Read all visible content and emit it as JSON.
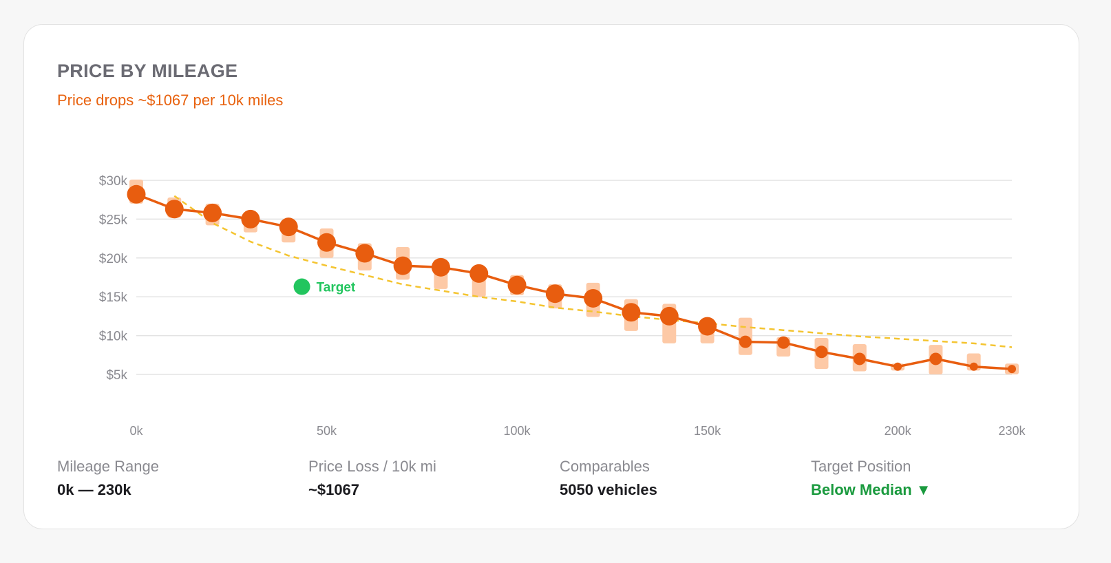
{
  "header": {
    "title": "PRICE BY MILEAGE",
    "subtitle": "Price drops ~$1067 per 10k miles"
  },
  "colors": {
    "accent": "#e85d0f",
    "band": "#fdc9a6",
    "trend": "#f4c430",
    "target": "#22c55e",
    "good_text": "#1a9a3e"
  },
  "chart_data": {
    "type": "line",
    "title": "PRICE BY MILEAGE",
    "xlabel": "",
    "ylabel": "",
    "x_ticks": [
      "0k",
      "50k",
      "100k",
      "150k",
      "200k",
      "230k"
    ],
    "y_ticks": [
      "$30k",
      "$25k",
      "$20k",
      "$15k",
      "$10k",
      "$5k"
    ],
    "xlim": [
      0,
      230
    ],
    "ylim": [
      0,
      30
    ],
    "grid": true,
    "x_unit": "thousand miles",
    "y_unit": "thousand USD",
    "series": [
      {
        "kind": "median",
        "points": [
          {
            "x": 0,
            "y": 28.2,
            "lo": 27.0,
            "hi": 30.1,
            "n": 1
          },
          {
            "x": 10,
            "y": 26.3,
            "lo": 25.2,
            "hi": 27.8,
            "n": 1
          },
          {
            "x": 20,
            "y": 25.8,
            "lo": 24.2,
            "hi": 27.0,
            "n": 1
          },
          {
            "x": 30,
            "y": 25.0,
            "lo": 23.3,
            "hi": 25.8,
            "n": 1
          },
          {
            "x": 40,
            "y": 24.0,
            "lo": 22.0,
            "hi": 24.8,
            "n": 1
          },
          {
            "x": 50,
            "y": 22.0,
            "lo": 20.0,
            "hi": 23.8,
            "n": 1
          },
          {
            "x": 60,
            "y": 20.6,
            "lo": 18.4,
            "hi": 21.9,
            "n": 1
          },
          {
            "x": 70,
            "y": 19.0,
            "lo": 17.2,
            "hi": 21.4,
            "n": 1
          },
          {
            "x": 80,
            "y": 18.8,
            "lo": 16.0,
            "hi": 19.8,
            "n": 1
          },
          {
            "x": 90,
            "y": 18.0,
            "lo": 15.0,
            "hi": 18.8,
            "n": 1
          },
          {
            "x": 100,
            "y": 16.5,
            "lo": 15.2,
            "hi": 17.8,
            "n": 1
          },
          {
            "x": 110,
            "y": 15.4,
            "lo": 13.5,
            "hi": 16.6,
            "n": 1
          },
          {
            "x": 120,
            "y": 14.8,
            "lo": 12.4,
            "hi": 16.8,
            "n": 1
          },
          {
            "x": 130,
            "y": 13.0,
            "lo": 10.6,
            "hi": 14.7,
            "n": 1
          },
          {
            "x": 140,
            "y": 12.5,
            "lo": 9.0,
            "hi": 14.1,
            "n": 1
          },
          {
            "x": 150,
            "y": 11.2,
            "lo": 9.0,
            "hi": 12.0,
            "n": 1
          },
          {
            "x": 160,
            "y": 9.2,
            "lo": 7.5,
            "hi": 12.3,
            "n": 0
          },
          {
            "x": 170,
            "y": 9.1,
            "lo": 7.3,
            "hi": 9.8,
            "n": 0
          },
          {
            "x": 180,
            "y": 7.9,
            "lo": 5.7,
            "hi": 9.7,
            "n": 0
          },
          {
            "x": 190,
            "y": 7.0,
            "lo": 5.4,
            "hi": 8.9,
            "n": 0
          },
          {
            "x": 200,
            "y": 6.0,
            "lo": 5.5,
            "hi": 6.4,
            "n": -1
          },
          {
            "x": 210,
            "y": 7.0,
            "lo": 5.0,
            "hi": 8.8,
            "n": 0
          },
          {
            "x": 220,
            "y": 6.0,
            "lo": 5.5,
            "hi": 7.7,
            "n": -1
          },
          {
            "x": 230,
            "y": 5.7,
            "lo": 5.0,
            "hi": 6.4,
            "n": -1
          }
        ]
      },
      {
        "kind": "trend",
        "points": [
          {
            "x": 10,
            "y": 28.0
          },
          {
            "x": 20,
            "y": 24.5
          },
          {
            "x": 30,
            "y": 22.1
          },
          {
            "x": 40,
            "y": 20.3
          },
          {
            "x": 50,
            "y": 19.0
          },
          {
            "x": 60,
            "y": 17.8
          },
          {
            "x": 70,
            "y": 16.6
          },
          {
            "x": 80,
            "y": 15.8
          },
          {
            "x": 90,
            "y": 15.0
          },
          {
            "x": 100,
            "y": 14.4
          },
          {
            "x": 110,
            "y": 13.6
          },
          {
            "x": 120,
            "y": 13.1
          },
          {
            "x": 130,
            "y": 12.5
          },
          {
            "x": 140,
            "y": 12.0
          },
          {
            "x": 150,
            "y": 11.6
          },
          {
            "x": 160,
            "y": 11.1
          },
          {
            "x": 170,
            "y": 10.7
          },
          {
            "x": 180,
            "y": 10.3
          },
          {
            "x": 190,
            "y": 9.9
          },
          {
            "x": 200,
            "y": 9.6
          },
          {
            "x": 210,
            "y": 9.3
          },
          {
            "x": 220,
            "y": 9.0
          },
          {
            "x": 230,
            "y": 8.5
          }
        ]
      }
    ],
    "target": {
      "label": "Target",
      "x": 43.5,
      "y": 16.3
    }
  },
  "stats": [
    {
      "label": "Mileage Range",
      "value": "0k — 230k"
    },
    {
      "label": "Price Loss / 10k mi",
      "value": "~$1067"
    },
    {
      "label": "Comparables",
      "value": "5050 vehicles"
    },
    {
      "label": "Target Position",
      "value": "Below Median ▼"
    }
  ]
}
